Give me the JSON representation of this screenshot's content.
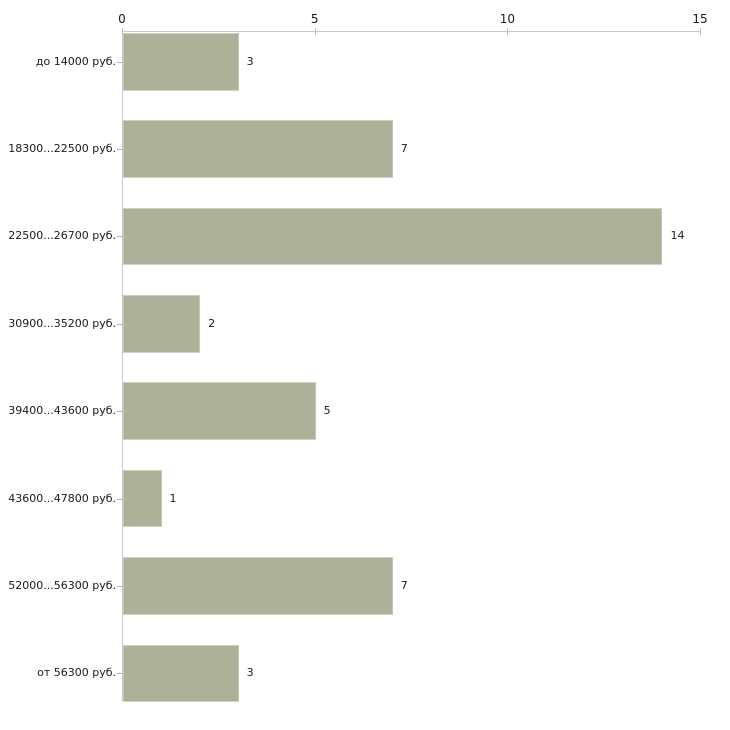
{
  "chart_data": {
    "type": "bar",
    "orientation": "horizontal",
    "categories": [
      "до 14000 руб.",
      "18300...22500 руб.",
      "22500...26700 руб.",
      "30900...35200 руб.",
      "39400...43600 руб.",
      "43600...47800 руб.",
      "52000...56300 руб.",
      "от 56300 руб."
    ],
    "values": [
      3,
      7,
      14,
      2,
      5,
      1,
      7,
      3
    ],
    "value_labels": [
      "3",
      "7",
      "14",
      "2",
      "5",
      "1",
      "7",
      "3"
    ],
    "x_ticks": [
      0,
      5,
      10,
      15
    ],
    "xlim": [
      0,
      15
    ],
    "xlabel": "",
    "ylabel": "",
    "grid": false,
    "legend": false,
    "axis_position": "top",
    "colors": {
      "bar_fill": "#acb197",
      "bar_edge": "#c3c8b0",
      "axis_line": "#c9c9c9",
      "tick_mark": "#c2c59c",
      "text": "#1a1a1a",
      "background": "#ffffff"
    }
  }
}
